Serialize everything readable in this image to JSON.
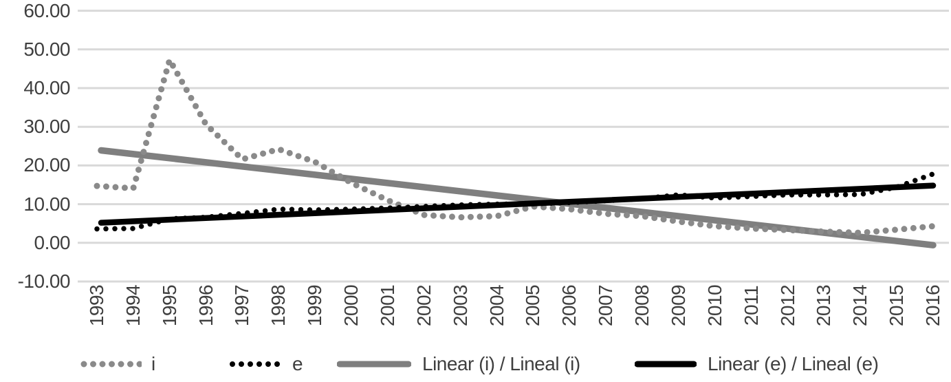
{
  "chart_data": {
    "type": "line",
    "title": "",
    "xlabel": "",
    "ylabel": "",
    "x": [
      1993,
      1994,
      1995,
      1996,
      1997,
      1998,
      1999,
      2000,
      2001,
      2002,
      2003,
      2004,
      2005,
      2006,
      2007,
      2008,
      2009,
      2010,
      2011,
      2012,
      2013,
      2014,
      2015,
      2016
    ],
    "series": [
      {
        "name": "i",
        "style": "dotted",
        "color": "#8a8a8a",
        "values": [
          14.7,
          14.1,
          47.3,
          30.6,
          21.6,
          24.2,
          20.9,
          15.5,
          11.0,
          7.2,
          6.6,
          6.9,
          9.4,
          8.7,
          7.5,
          6.9,
          5.5,
          4.3,
          3.7,
          3.3,
          2.9,
          2.6,
          3.4,
          4.3
        ]
      },
      {
        "name": "e",
        "style": "dotted",
        "color": "#000000",
        "values": [
          3.6,
          3.7,
          6.2,
          6.6,
          7.6,
          8.7,
          8.5,
          8.7,
          9.0,
          9.4,
          9.8,
          10.0,
          10.1,
          10.4,
          10.9,
          11.4,
          12.4,
          11.6,
          12.0,
          12.4,
          12.4,
          12.5,
          14.4,
          17.8
        ]
      },
      {
        "name": "Linear (i) / Lineal (i)",
        "style": "trend",
        "color": "#7f7f7f",
        "trend_endpoints": [
          23.9,
          -0.6
        ]
      },
      {
        "name": "Linear (e) / Lineal (e)",
        "style": "trend",
        "color": "#000000",
        "trend_endpoints": [
          5.2,
          14.8
        ]
      }
    ],
    "ylim": [
      -10,
      60
    ],
    "yticks": {
      "values": [
        60,
        50,
        40,
        30,
        20,
        10,
        0,
        -10
      ],
      "labels": [
        "60.00",
        "50.00",
        "40.00",
        "30.00",
        "20.00",
        "10.00",
        "0.00",
        "-10.00"
      ]
    },
    "grid": "horizontal",
    "legend_position": "bottom",
    "colors": {
      "gridline": "#d9d9d9",
      "axis_text": "#3f3f3f"
    }
  }
}
